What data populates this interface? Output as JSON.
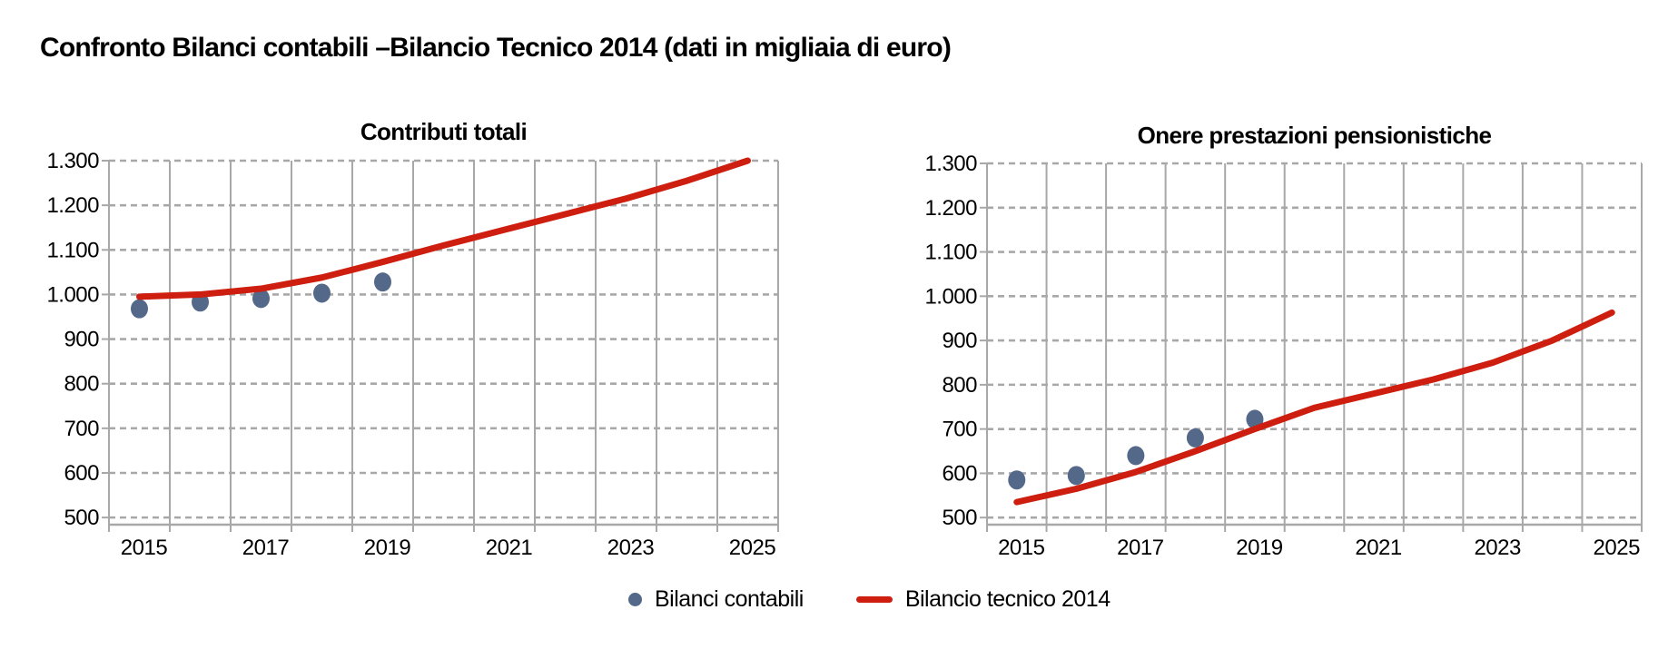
{
  "page": {
    "title": "Confronto Bilanci contabili –Bilancio Tecnico 2014 (dati in migliaia di euro)"
  },
  "colors": {
    "line_red": "#cd1e0f",
    "dot_blue": "#54688a",
    "grid_gray": "#a8a8a8",
    "text_black": "#000000"
  },
  "legend": {
    "items": [
      {
        "label": "Bilanci contabili",
        "marker": "dot-icon"
      },
      {
        "label": "Bilancio tecnico 2014",
        "marker": "line-icon"
      }
    ]
  },
  "chart_data": [
    {
      "type": "scatter",
      "title": "Contributi totali",
      "categories": [
        2015,
        2016,
        2017,
        2018,
        2019,
        2020,
        2021,
        2022,
        2023,
        2024,
        2025
      ],
      "xtick_labels": [
        "2015",
        "2017",
        "2019",
        "2021",
        "2023",
        "2025"
      ],
      "ytick_labels": [
        "1.300",
        "1.200",
        "1.100",
        "1.000",
        "900",
        "800",
        "700",
        "600",
        "500"
      ],
      "ylim": [
        500,
        1300
      ],
      "ytick_step": 100,
      "grid": true,
      "legend_position": "bottom",
      "series": [
        {
          "name": "Bilanci contabili",
          "type": "scatter",
          "categories": [
            2015,
            2016,
            2017,
            2018,
            2019
          ],
          "values": [
            968,
            983,
            991,
            1003,
            1028
          ]
        },
        {
          "name": "Bilancio tecnico 2014",
          "type": "line",
          "categories": [
            2015,
            2016,
            2017,
            2018,
            2019,
            2020,
            2021,
            2022,
            2023,
            2024,
            2025
          ],
          "values": [
            995,
            1000,
            1013,
            1038,
            1073,
            1110,
            1145,
            1180,
            1215,
            1255,
            1300
          ]
        }
      ]
    },
    {
      "type": "scatter",
      "title": "Onere prestazioni pensionistiche",
      "categories": [
        2015,
        2016,
        2017,
        2018,
        2019,
        2020,
        2021,
        2022,
        2023,
        2024,
        2025
      ],
      "xtick_labels": [
        "2015",
        "2017",
        "2019",
        "2021",
        "2023",
        "2025"
      ],
      "ytick_labels": [
        "1.300",
        "1.200",
        "1.100",
        "1.000",
        "900",
        "800",
        "700",
        "600",
        "500"
      ],
      "ylim": [
        500,
        1300
      ],
      "ytick_step": 100,
      "grid": true,
      "legend_position": "bottom",
      "series": [
        {
          "name": "Bilanci contabili",
          "type": "scatter",
          "categories": [
            2015,
            2016,
            2017,
            2018,
            2019
          ],
          "values": [
            585,
            595,
            640,
            680,
            722
          ]
        },
        {
          "name": "Bilancio tecnico 2014",
          "type": "line",
          "categories": [
            2015,
            2016,
            2017,
            2018,
            2019,
            2020,
            2021,
            2022,
            2023,
            2024,
            2025
          ],
          "values": [
            535,
            565,
            603,
            650,
            700,
            748,
            780,
            812,
            850,
            900,
            963
          ]
        }
      ]
    }
  ]
}
